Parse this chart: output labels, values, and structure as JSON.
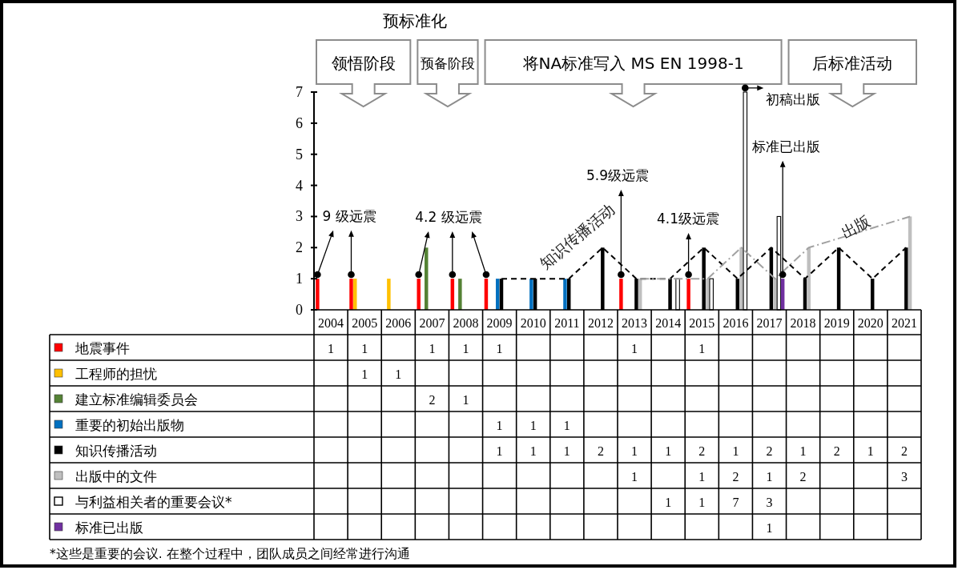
{
  "chart_data": {
    "type": "bar",
    "categories": [
      "2004",
      "2005",
      "2006",
      "2007",
      "2008",
      "2009",
      "2010",
      "2011",
      "2012",
      "2013",
      "2014",
      "2015",
      "2016",
      "2017",
      "2018",
      "2019",
      "2020",
      "2021"
    ],
    "series": [
      {
        "name": "地震事件",
        "color": "#ff0000",
        "marker": "circle",
        "values": [
          1,
          1,
          null,
          1,
          1,
          1,
          null,
          null,
          null,
          1,
          null,
          1,
          null,
          null,
          null,
          null,
          null,
          null
        ],
        "value_labels": [
          "1",
          "1",
          null,
          "1",
          "1",
          "1",
          null,
          null,
          null,
          "1",
          null,
          "1",
          null,
          null,
          null,
          null,
          null,
          null
        ]
      },
      {
        "name": "工程师的担忧",
        "color": "#ffc000",
        "values": [
          null,
          1,
          1,
          null,
          null,
          null,
          null,
          null,
          null,
          null,
          null,
          null,
          null,
          null,
          null,
          null,
          null,
          null
        ],
        "value_labels": [
          null,
          "1",
          "1",
          null,
          null,
          null,
          null,
          null,
          null,
          null,
          null,
          null,
          null,
          null,
          null,
          null,
          null,
          null
        ]
      },
      {
        "name": "建立标准编辑委员会",
        "color": "#548235",
        "values": [
          null,
          null,
          null,
          2,
          1,
          null,
          null,
          null,
          null,
          null,
          null,
          null,
          null,
          null,
          null,
          null,
          null,
          null
        ],
        "value_labels": [
          null,
          null,
          null,
          "2",
          "1",
          null,
          null,
          null,
          null,
          null,
          null,
          null,
          null,
          null,
          null,
          null,
          null,
          null
        ]
      },
      {
        "name": "重要的初始出版物",
        "color": "#0070c0",
        "values": [
          null,
          null,
          null,
          null,
          null,
          1,
          1,
          1,
          null,
          null,
          null,
          null,
          null,
          null,
          null,
          null,
          null,
          null
        ],
        "value_labels": [
          null,
          null,
          null,
          null,
          null,
          "1",
          "1",
          "1",
          null,
          null,
          null,
          null,
          null,
          null,
          null,
          null,
          null,
          null
        ]
      },
      {
        "name": "知识传播活动",
        "color": "#000000",
        "line_style": "dashed",
        "values": [
          null,
          null,
          null,
          null,
          null,
          1,
          1,
          1,
          2,
          1,
          1,
          2,
          1,
          2,
          1,
          2,
          1,
          2
        ],
        "value_labels": [
          null,
          null,
          null,
          null,
          null,
          "1",
          "1",
          "1",
          "2",
          "1",
          "1",
          "2",
          "1",
          "2",
          "1",
          "2",
          "1",
          "2"
        ]
      },
      {
        "name": "出版中的文件",
        "color": "#bfbfbf",
        "line_style": "dashdot",
        "values": [
          null,
          null,
          null,
          null,
          null,
          null,
          null,
          null,
          null,
          1,
          null,
          1,
          2,
          1,
          2,
          null,
          null,
          3
        ],
        "value_labels": [
          null,
          null,
          null,
          null,
          null,
          null,
          null,
          null,
          null,
          "1",
          null,
          "1",
          "2",
          "1",
          "2",
          null,
          null,
          "3"
        ]
      },
      {
        "name": "与利益相关者的重要会议*",
        "color": "#ffffff",
        "values": [
          null,
          null,
          null,
          null,
          null,
          null,
          null,
          null,
          null,
          null,
          1,
          1,
          7,
          3,
          null,
          null,
          null,
          null
        ],
        "value_labels": [
          null,
          null,
          null,
          null,
          null,
          null,
          null,
          null,
          null,
          null,
          "1",
          "1",
          "7",
          "3",
          null,
          null,
          null,
          null
        ]
      },
      {
        "name": "标准已出版",
        "color": "#7030a0",
        "marker": "circle",
        "values": [
          null,
          null,
          null,
          null,
          null,
          null,
          null,
          null,
          null,
          null,
          null,
          null,
          null,
          1,
          null,
          null,
          null,
          null
        ],
        "value_labels": [
          null,
          null,
          null,
          null,
          null,
          null,
          null,
          null,
          null,
          null,
          null,
          null,
          null,
          "1",
          null,
          null,
          null,
          null
        ]
      }
    ],
    "ylim": [
      0,
      7
    ],
    "yticks": [
      0,
      1,
      2,
      3,
      4,
      5,
      6,
      7
    ],
    "legend": "bottom",
    "annotations": [
      "预标准化",
      "领悟阶段",
      "预备阶段",
      "将NA标准写入 MS EN 1998-1",
      "后标准活动",
      "知识传播活动",
      "出版",
      "9 级远震",
      "4.2 级远震",
      "5.9级远震",
      "4.1级远震",
      "初稿出版",
      "标准已出版",
      "*这些是重要的会议. 在整个过程中，团队成员之间经常进行沟通"
    ]
  }
}
